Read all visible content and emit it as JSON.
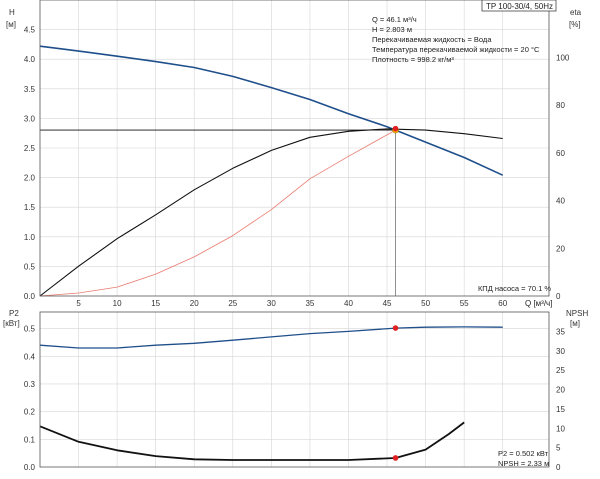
{
  "chart_data": [
    {
      "type": "line",
      "model_label": "TP 100-30/4, 50Hz",
      "xlabel": "Q [м³/ч]",
      "ylabel_left": [
        "H",
        "[м]"
      ],
      "ylabel_right": [
        "eta",
        "[%]"
      ],
      "xlim": [
        0,
        66
      ],
      "ylim_left": [
        0,
        5
      ],
      "ylim_right": [
        0,
        124
      ],
      "x_ticks": [
        5,
        10,
        15,
        20,
        25,
        30,
        35,
        40,
        45,
        50,
        55,
        60
      ],
      "y_left_ticks": [
        "0.0",
        "0.5",
        "1.0",
        "1.5",
        "2.0",
        "2.5",
        "3.0",
        "3.5",
        "4.0",
        "4.5"
      ],
      "y_right_ticks": [
        "0",
        "20",
        "40",
        "60",
        "80",
        "100"
      ],
      "grid": true,
      "info_lines": [
        "Q = 46.1 м³/ч",
        "H = 2.803 м",
        "Перекачиваемая жидкость = Вода",
        "Температура перекачиваемой жидкости = 20 °C",
        "Плотность = 998.2 кг/м³"
      ],
      "efficiency_label": "КПД насоса = 70.1 %",
      "series": [
        {
          "axis": "left",
          "color": "#1f4f8b",
          "x": [
            0,
            3,
            6,
            10,
            15,
            20,
            25,
            30,
            35,
            40,
            45,
            46.1,
            50,
            55,
            60
          ],
          "y": [
            4.22,
            4.17,
            4.12,
            4.05,
            3.96,
            3.86,
            3.71,
            3.52,
            3.32,
            3.08,
            2.86,
            2.803,
            2.6,
            2.34,
            2.04
          ]
        },
        {
          "axis": "right",
          "color": "#111111",
          "x": [
            0,
            5,
            10,
            15,
            20,
            25,
            30,
            35,
            40,
            45,
            50,
            55,
            60
          ],
          "y": [
            0,
            12.5,
            24,
            34,
            44.5,
            53.5,
            61,
            66.5,
            69,
            70,
            69.5,
            68,
            66
          ]
        },
        {
          "axis": "left",
          "color": "#e87a6e",
          "x": [
            0,
            5,
            10,
            15,
            20,
            25,
            30,
            35,
            40,
            46.1
          ],
          "y": [
            0,
            0.05,
            0.15,
            0.37,
            0.66,
            1.02,
            1.46,
            1.98,
            2.36,
            2.803
          ]
        }
      ],
      "operating_point": {
        "q": 46.1,
        "h": 2.803,
        "eta": 70.1
      }
    },
    {
      "type": "line",
      "xlim": [
        0,
        66
      ],
      "ylabel_left": [
        "P2",
        "[кВт]"
      ],
      "ylabel_right": [
        "NPSH",
        "[м]"
      ],
      "ylim_left": [
        0,
        0.56
      ],
      "ylim_right": [
        0,
        40
      ],
      "y_left_ticks": [
        "0.0",
        "0.1",
        "0.2",
        "0.3",
        "0.4",
        "0.5"
      ],
      "y_right_ticks": [
        "0",
        "5",
        "10",
        "15",
        "20",
        "25",
        "30",
        "35"
      ],
      "grid": true,
      "info_lines": [
        "P2 = 0.502 кВт",
        "NPSH = 2.33 м"
      ],
      "series": [
        {
          "axis": "left",
          "color": "#1f4f8b",
          "x": [
            0,
            5,
            10,
            15,
            20,
            25,
            30,
            35,
            40,
            46.1,
            50,
            55,
            60
          ],
          "y": [
            0.44,
            0.43,
            0.43,
            0.44,
            0.447,
            0.458,
            0.47,
            0.482,
            0.49,
            0.502,
            0.505,
            0.506,
            0.505
          ]
        },
        {
          "axis": "right",
          "color": "#111111",
          "x": [
            0,
            5,
            10,
            15,
            20,
            25,
            30,
            35,
            40,
            46.1,
            50,
            53,
            55
          ],
          "y": [
            10.5,
            6.5,
            4.3,
            2.8,
            2,
            1.8,
            1.8,
            1.8,
            1.8,
            2.33,
            4.5,
            8.5,
            11.5
          ]
        }
      ],
      "operating_point": {
        "q": 46.1,
        "p2": 0.502,
        "npsh": 2.33
      }
    }
  ]
}
